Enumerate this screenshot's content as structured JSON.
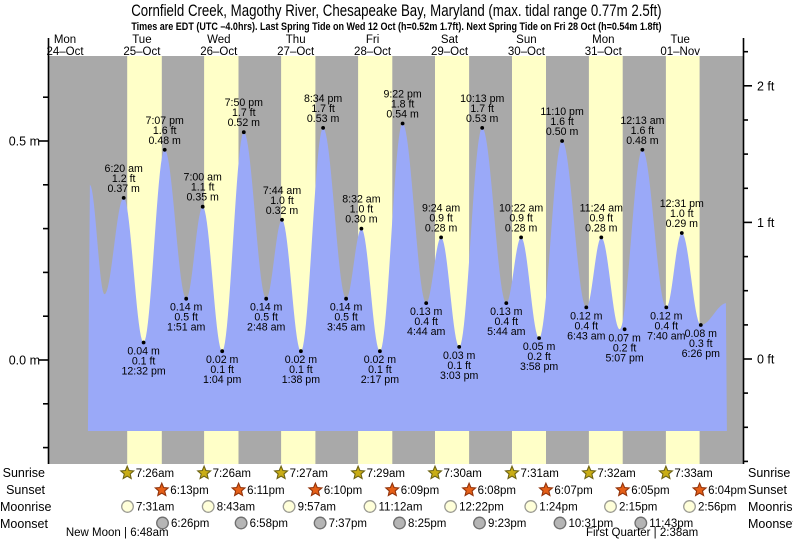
{
  "title": "Cornfield Creek, Magothy River, Chesapeake Bay, Maryland (max. tidal range 0.77m 2.5ft)",
  "subtitle": "Times are EDT (UTC –4.0hrs). Last Spring Tide on Wed 12 Oct (h=0.52m 1.7ft). Next Spring Tide on Fri 28 Oct (h=0.54m 1.8ft)",
  "colors": {
    "night_band": "#a9a9a9",
    "daylight_band": "#ffffc8",
    "tide_fill": "#9aa9f8",
    "date_red": "#f4281c",
    "axis_black": "#000000",
    "sunrise_star_fill": "#c9ad15",
    "sunrise_star_stroke": "#6e6414",
    "sunset_star_fill": "#e55f17",
    "sunset_star_stroke": "#92330a",
    "moonrise_fill": "#ffffd9",
    "moonrise_stroke": "#9b9b93",
    "moonset_fill": "#b5b5b5",
    "moonset_stroke": "#6f6f6f"
  },
  "days": [
    {
      "dow": "Mon",
      "date": "24–Oct"
    },
    {
      "dow": "Tue",
      "date": "25–Oct"
    },
    {
      "dow": "Wed",
      "date": "26–Oct"
    },
    {
      "dow": "Thu",
      "date": "27–Oct"
    },
    {
      "dow": "Fri",
      "date": "28–Oct"
    },
    {
      "dow": "Sat",
      "date": "29–Oct"
    },
    {
      "dow": "Sun",
      "date": "30–Oct"
    },
    {
      "dow": "Mon",
      "date": "31–Oct"
    },
    {
      "dow": "Tue",
      "date": "01–Nov"
    }
  ],
  "chart_data": {
    "type": "area",
    "title": "Tide height curve, Mon 24 Oct – Tue 01 Nov",
    "y_axis_left": {
      "unit": "m",
      "tick_labels": [
        "0.5 m",
        "0.0 m"
      ],
      "tick_values": [
        0.5,
        0.0
      ]
    },
    "y_axis_right": {
      "unit": "ft",
      "tick_labels": [
        "2 ft",
        "1 ft",
        "0 ft"
      ],
      "tick_values": [
        2,
        1,
        0
      ]
    },
    "extremes": [
      {
        "day": 1,
        "time": "6:20 am",
        "height_ft": "1.2 ft",
        "height_m": "0.37 m",
        "kind": "high"
      },
      {
        "day": 1,
        "time": "12:32 pm",
        "height_ft": "0.1 ft",
        "height_m": "0.04 m",
        "kind": "low"
      },
      {
        "day": 1,
        "time": "7:07 pm",
        "height_ft": "1.6 ft",
        "height_m": "0.48 m",
        "kind": "high"
      },
      {
        "day": 2,
        "time": "1:51 am",
        "height_ft": "0.5 ft",
        "height_m": "0.14 m",
        "kind": "low"
      },
      {
        "day": 2,
        "time": "7:00 am",
        "height_ft": "1.1 ft",
        "height_m": "0.35 m",
        "kind": "high"
      },
      {
        "day": 2,
        "time": "1:04 pm",
        "height_ft": "0.1 ft",
        "height_m": "0.02 m",
        "kind": "low"
      },
      {
        "day": 2,
        "time": "7:50 pm",
        "height_ft": "1.7 ft",
        "height_m": "0.52 m",
        "kind": "high"
      },
      {
        "day": 3,
        "time": "2:48 am",
        "height_ft": "0.5 ft",
        "height_m": "0.14 m",
        "kind": "low"
      },
      {
        "day": 3,
        "time": "7:44 am",
        "height_ft": "1.0 ft",
        "height_m": "0.32 m",
        "kind": "high"
      },
      {
        "day": 3,
        "time": "1:38 pm",
        "height_ft": "0.1 ft",
        "height_m": "0.02 m",
        "kind": "low"
      },
      {
        "day": 3,
        "time": "8:34 pm",
        "height_ft": "1.7 ft",
        "height_m": "0.53 m",
        "kind": "high"
      },
      {
        "day": 4,
        "time": "3:45 am",
        "height_ft": "0.5 ft",
        "height_m": "0.14 m",
        "kind": "low"
      },
      {
        "day": 4,
        "time": "8:32 am",
        "height_ft": "1.0 ft",
        "height_m": "0.30 m",
        "kind": "high"
      },
      {
        "day": 4,
        "time": "2:17 pm",
        "height_ft": "0.1 ft",
        "height_m": "0.02 m",
        "kind": "low"
      },
      {
        "day": 4,
        "time": "9:22 pm",
        "height_ft": "1.8 ft",
        "height_m": "0.54 m",
        "kind": "high"
      },
      {
        "day": 5,
        "time": "4:44 am",
        "height_ft": "0.4 ft",
        "height_m": "0.13 m",
        "kind": "low"
      },
      {
        "day": 5,
        "time": "9:24 am",
        "height_ft": "0.9 ft",
        "height_m": "0.28 m",
        "kind": "high"
      },
      {
        "day": 5,
        "time": "3:03 pm",
        "height_ft": "0.1 ft",
        "height_m": "0.03 m",
        "kind": "low"
      },
      {
        "day": 5,
        "time": "10:13 pm",
        "height_ft": "1.7 ft",
        "height_m": "0.53 m",
        "kind": "high"
      },
      {
        "day": 6,
        "time": "5:44 am",
        "height_ft": "0.4 ft",
        "height_m": "0.13 m",
        "kind": "low"
      },
      {
        "day": 6,
        "time": "10:22 am",
        "height_ft": "0.9 ft",
        "height_m": "0.28 m",
        "kind": "high"
      },
      {
        "day": 6,
        "time": "3:58 pm",
        "height_ft": "0.2 ft",
        "height_m": "0.05 m",
        "kind": "low"
      },
      {
        "day": 6,
        "time": "11:10 pm",
        "height_ft": "1.6 ft",
        "height_m": "0.50 m",
        "kind": "high"
      },
      {
        "day": 7,
        "time": "6:43 am",
        "height_ft": "0.4 ft",
        "height_m": "0.12 m",
        "kind": "low"
      },
      {
        "day": 7,
        "time": "11:24 am",
        "height_ft": "0.9 ft",
        "height_m": "0.28 m",
        "kind": "high"
      },
      {
        "day": 7,
        "time": "5:07 pm",
        "height_ft": "0.2 ft",
        "height_m": "0.07 m",
        "kind": "low"
      },
      {
        "day": 8,
        "time": "12:13 am",
        "height_ft": "1.6 ft",
        "height_m": "0.48 m",
        "kind": "high"
      },
      {
        "day": 8,
        "time": "7:40 am",
        "height_ft": "0.4 ft",
        "height_m": "0.12 m",
        "kind": "low"
      },
      {
        "day": 8,
        "time": "12:31 pm",
        "height_ft": "1.0 ft",
        "height_m": "0.29 m",
        "kind": "high"
      },
      {
        "day": 8,
        "time": "6:26 pm",
        "height_ft": "0.3 ft",
        "height_m": "0.08 m",
        "kind": "low"
      }
    ],
    "unlabeled_extremes": [
      {
        "day": 0,
        "time": "7:47 pm",
        "m": 0.4,
        "kind": "high"
      },
      {
        "day": 1,
        "time": "12:20 am",
        "m": 0.15,
        "kind": "low"
      }
    ],
    "series_window": {
      "start": {
        "day": 0,
        "time": "7:10 pm",
        "m": -0.17
      },
      "end": {
        "day": 9,
        "time": "2:35 am",
        "m": 0.13
      }
    }
  },
  "astro": {
    "row_labels": [
      "Sunrise",
      "Sunset",
      "Moonrise",
      "Moonset"
    ],
    "rows": [
      {
        "name": "sunrise",
        "icon": "sunrise-star-icon",
        "times": [
          "7:26am",
          "7:26am",
          "7:27am",
          "7:29am",
          "7:30am",
          "7:31am",
          "7:32am",
          "7:33am"
        ]
      },
      {
        "name": "sunset",
        "icon": "sunset-star-icon",
        "times": [
          "6:13pm",
          "6:11pm",
          "6:10pm",
          "6:09pm",
          "6:08pm",
          "6:07pm",
          "6:05pm",
          "6:04pm"
        ]
      },
      {
        "name": "moonrise",
        "icon": "moonrise-circle-icon",
        "times": [
          "7:31am",
          "8:43am",
          "9:57am",
          "11:12am",
          "12:22pm",
          "1:24pm",
          "2:15pm",
          "2:56pm"
        ]
      },
      {
        "name": "moonset",
        "icon": "moonset-circle-icon",
        "times": [
          "6:26pm",
          "6:58pm",
          "7:37pm",
          "8:25pm",
          "9:23pm",
          "10:31pm",
          "11:43pm"
        ]
      }
    ],
    "phases": [
      {
        "label": "New Moon",
        "separator": "|",
        "time": "6:48am",
        "day": 1
      },
      {
        "label": "First Quarter",
        "separator": "|",
        "time": "2:38am",
        "day": 8
      }
    ]
  }
}
